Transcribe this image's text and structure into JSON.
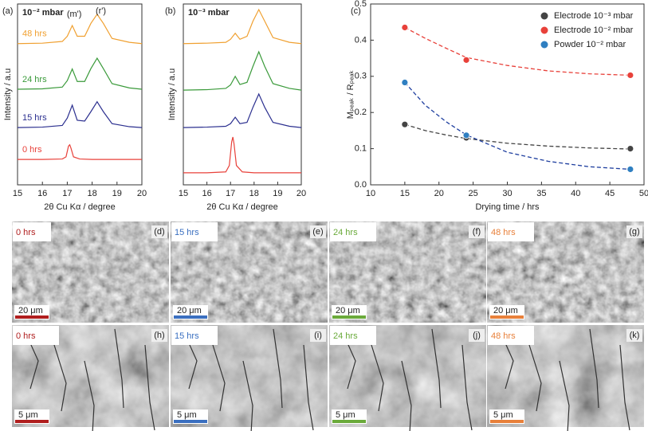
{
  "chart_data": [
    {
      "type": "line",
      "label": "(a)",
      "xlabel": "2θ Cu Kα / degree",
      "ylabel": "Intensity / a.u",
      "annotations": [
        "10⁻² mbar",
        "(m')",
        "(r')"
      ],
      "xlim": [
        15,
        20
      ],
      "xticks": [
        15,
        16,
        17,
        18,
        19,
        20
      ],
      "ylim": [
        0,
        4.2
      ],
      "series": [
        {
          "name": "0 hrs",
          "color": "#e8413a",
          "x": [
            15,
            16,
            16.8,
            16.95,
            17.05,
            17.1,
            17.15,
            17.25,
            17.5,
            18,
            20
          ],
          "values": [
            0.59,
            0.59,
            0.6,
            0.65,
            0.9,
            0.93,
            0.85,
            0.65,
            0.6,
            0.59,
            0.59
          ]
        },
        {
          "name": "15 hrs",
          "color": "#2b2f8f",
          "x": [
            15,
            16,
            16.8,
            17.0,
            17.2,
            17.4,
            17.7,
            17.95,
            18.2,
            18.45,
            18.8,
            19.5,
            20
          ],
          "values": [
            1.33,
            1.34,
            1.38,
            1.55,
            1.85,
            1.5,
            1.48,
            1.7,
            1.93,
            1.7,
            1.42,
            1.35,
            1.33
          ]
        },
        {
          "name": "24 hrs",
          "color": "#3a9a3a",
          "x": [
            15,
            16,
            16.8,
            17.0,
            17.2,
            17.4,
            17.7,
            17.95,
            18.2,
            18.45,
            18.8,
            19.5,
            20
          ],
          "values": [
            2.22,
            2.23,
            2.27,
            2.42,
            2.69,
            2.4,
            2.4,
            2.7,
            2.94,
            2.7,
            2.35,
            2.25,
            2.22
          ]
        },
        {
          "name": "48 hrs",
          "color": "#f0a030",
          "x": [
            15,
            16,
            16.8,
            17.0,
            17.2,
            17.4,
            17.7,
            17.95,
            18.2,
            18.45,
            18.8,
            19.5,
            20
          ],
          "values": [
            3.28,
            3.29,
            3.33,
            3.45,
            3.7,
            3.45,
            3.45,
            3.75,
            3.96,
            3.75,
            3.4,
            3.31,
            3.28
          ]
        }
      ]
    },
    {
      "type": "line",
      "label": "(b)",
      "xlabel": "2θ Cu Kα / degree",
      "ylabel": "Intensity / a.u",
      "annotations": [
        "10⁻³ mbar"
      ],
      "xlim": [
        15,
        20
      ],
      "xticks": [
        15,
        16,
        17,
        18,
        19,
        20
      ],
      "ylim": [
        0,
        4.2
      ],
      "series": [
        {
          "color": "#e8413a",
          "x": [
            15,
            16,
            16.8,
            16.95,
            17.05,
            17.1,
            17.15,
            17.25,
            17.5,
            18,
            20
          ],
          "values": [
            0.28,
            0.28,
            0.3,
            0.45,
            1.0,
            1.11,
            0.95,
            0.45,
            0.3,
            0.28,
            0.28
          ]
        },
        {
          "color": "#2b2f8f",
          "x": [
            15,
            16,
            16.8,
            17.0,
            17.2,
            17.4,
            17.7,
            17.95,
            18.2,
            18.45,
            18.8,
            19.5,
            20
          ],
          "values": [
            1.33,
            1.34,
            1.36,
            1.42,
            1.57,
            1.42,
            1.45,
            1.8,
            2.11,
            1.8,
            1.45,
            1.36,
            1.33
          ]
        },
        {
          "color": "#3a9a3a",
          "x": [
            15,
            16,
            16.8,
            17.0,
            17.2,
            17.4,
            17.7,
            17.95,
            18.2,
            18.45,
            18.8,
            19.5,
            20
          ],
          "values": [
            2.2,
            2.21,
            2.24,
            2.32,
            2.52,
            2.33,
            2.38,
            2.75,
            3.09,
            2.75,
            2.35,
            2.24,
            2.2
          ]
        },
        {
          "color": "#f0a030",
          "x": [
            15,
            16,
            16.8,
            17.0,
            17.2,
            17.4,
            17.7,
            17.95,
            18.2,
            18.45,
            18.8,
            19.5,
            20
          ],
          "values": [
            3.28,
            3.29,
            3.31,
            3.38,
            3.52,
            3.38,
            3.45,
            3.8,
            4.07,
            3.8,
            3.42,
            3.31,
            3.28
          ]
        }
      ]
    },
    {
      "type": "scatter",
      "label": "(c)",
      "xlabel": "Drying time / hrs",
      "ylabel": "Mₚₑₐₖ / Rₚₑₐₖ",
      "legend": "top-right",
      "xlim": [
        10,
        50
      ],
      "xticks": [
        10,
        15,
        20,
        25,
        30,
        35,
        40,
        45,
        50
      ],
      "ylim": [
        0,
        0.5
      ],
      "yticks": [
        {
          "value": 0,
          "label": "0.0"
        },
        0.1,
        0.2,
        0.3,
        0.4,
        0.5
      ],
      "series": [
        {
          "name": "Electrode 10⁻³ mbar",
          "color": "#444444",
          "x": [
            15,
            24,
            48
          ],
          "values": [
            0.167,
            0.13,
            0.1
          ],
          "fit": {
            "x": [
              15,
              18,
              21,
              24,
              30,
              36,
              42,
              48
            ],
            "values": [
              0.167,
              0.15,
              0.138,
              0.128,
              0.115,
              0.107,
              0.102,
              0.099
            ]
          }
        },
        {
          "name": "Electrode 10⁻² mbar",
          "color": "#e8413a",
          "x": [
            15,
            24,
            48
          ],
          "values": [
            0.435,
            0.345,
            0.303
          ],
          "fit": {
            "x": [
              15,
              18,
              21,
              24,
              30,
              36,
              42,
              48
            ],
            "values": [
              0.435,
              0.405,
              0.378,
              0.352,
              0.33,
              0.315,
              0.307,
              0.303
            ]
          }
        },
        {
          "name": "Powder 10⁻² mbar",
          "color": "#2f7fc1",
          "x": [
            15,
            24,
            48
          ],
          "values": [
            0.283,
            0.137,
            0.043
          ],
          "fit": {
            "x": [
              15,
              18,
              21,
              24,
              30,
              36,
              42,
              48
            ],
            "values": [
              0.283,
              0.22,
              0.175,
              0.138,
              0.09,
              0.065,
              0.05,
              0.043
            ]
          }
        }
      ]
    }
  ],
  "micrographs": {
    "time_colors": [
      "#b01e1e",
      "#3a6fc0",
      "#6aaa3a",
      "#e8803a"
    ],
    "rows": [
      {
        "scale_bar": "20 μm",
        "panels": [
          {
            "time": "0 hrs",
            "label": "(d)"
          },
          {
            "time": "15 hrs",
            "label": "(e)"
          },
          {
            "time": "24 hrs",
            "label": "(f)"
          },
          {
            "time": "48 hrs",
            "label": "(g)"
          }
        ]
      },
      {
        "scale_bar": "5 μm",
        "panels": [
          {
            "time": "0 hrs",
            "label": "(h)"
          },
          {
            "time": "15 hrs",
            "label": "(i)"
          },
          {
            "time": "24 hrs",
            "label": "(j)"
          },
          {
            "time": "48 hrs",
            "label": "(k)"
          }
        ]
      }
    ]
  }
}
